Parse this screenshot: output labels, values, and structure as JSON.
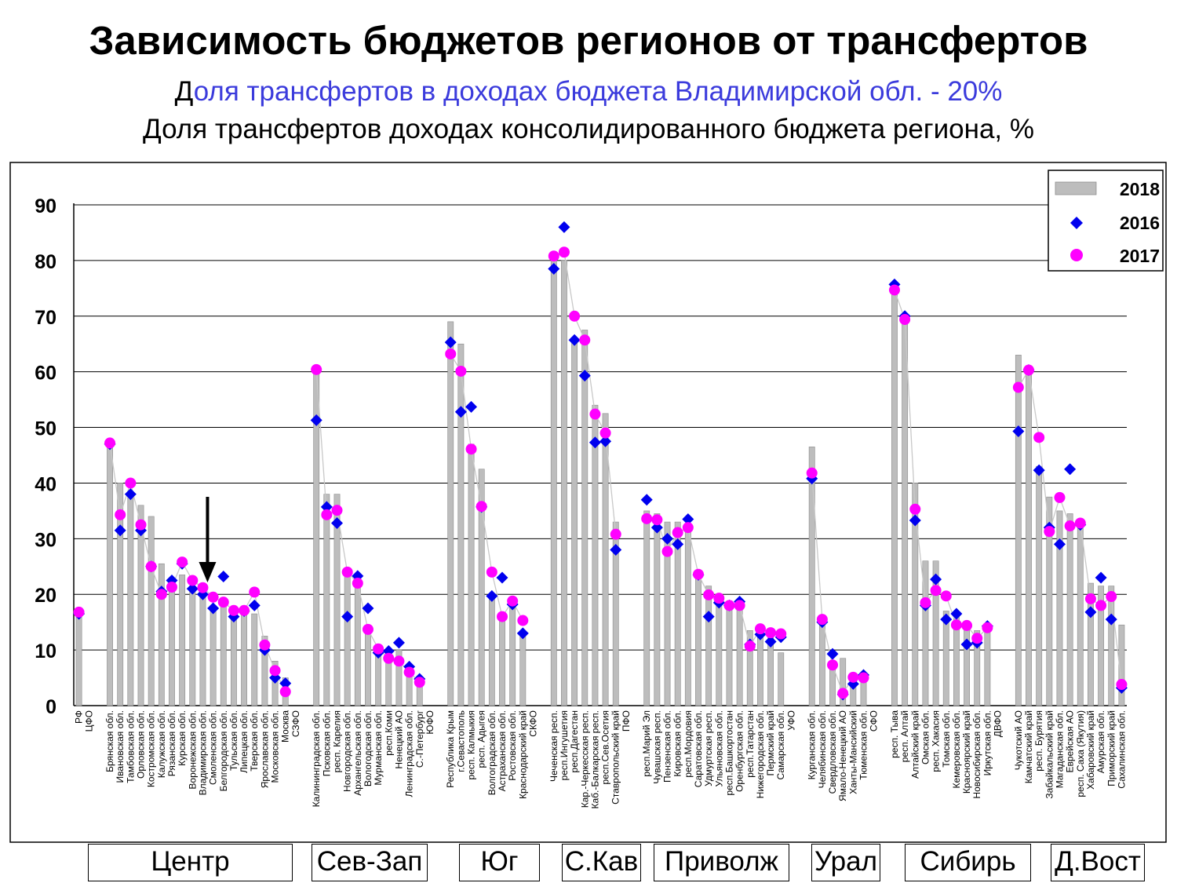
{
  "title": "Зависимость бюджетов регионов от трансфертов",
  "subtitle_first_letter": "Д",
  "subtitle_rest": "оля трансфертов в доходах бюджета Владимирской обл. - 20%",
  "subtitle2": "Доля трансфертов доходах консолидированного бюджета региона, %",
  "colors": {
    "bar": "#bdbdbd",
    "s2016": "#0000ee",
    "s2017": "#ff00ff",
    "line": "#c8c8c8"
  },
  "region_groups": [
    "Центр",
    "Сев-Зап",
    "Юг",
    "С.Кав",
    "Приволж",
    "Урал",
    "Сибирь",
    "Д.Вост"
  ],
  "chart_data": {
    "type": "bar",
    "title": "Доля трансфертов доходах консолидированного бюджета региона, %",
    "ylim": [
      0,
      90
    ],
    "yticks": [
      0,
      10,
      20,
      30,
      40,
      50,
      60,
      70,
      80,
      90
    ],
    "grid": true,
    "legend_position": "top-right",
    "series_names": [
      "2018",
      "2016",
      "2017"
    ],
    "categories": [
      "РФ",
      "ЦФО",
      "",
      "Брянская обл.",
      "Ивановская обл.",
      "Тамбовская обл.",
      "Орловская обл.",
      "Костромская обл.",
      "Калужская обл.",
      "Рязанская обл.",
      "Курская обл.",
      "Воронежская обл.",
      "Владимирская обл.",
      "Смоленская обл.",
      "Белгородская обл.",
      "Тульская обл.",
      "Липецкая обл.",
      "Тверская обл.",
      "Ярославская обл.",
      "Московская обл.",
      "Москва",
      "СЗФО",
      "",
      "Калининградская обл.",
      "Псковская обл.",
      "респ. Карелия",
      "Новгородская обл.",
      "Архангельская обл.",
      "Вологодская обл.",
      "Мурманская обл.",
      "респ.Коми",
      "Ненецкий АО",
      "Ленинградская обл.",
      "С.-Петербург",
      "ЮФО",
      "",
      "Республика Крым",
      "г.Севастополь",
      "респ. Калмыкия",
      "респ. Адыгея",
      "Волгоградская обл.",
      "Астраханская обл.",
      "Ростовская обл.",
      "Краснодарский край",
      "СКФО",
      "",
      "Чеченская респ.",
      "респ.Ингушетия",
      "респ.Дагестан",
      "Кар.-Черкесская респ.",
      "Каб.-Балкарская респ.",
      "респ.Сев.Осетия",
      "Ставропольский край",
      "ПФО",
      "",
      "респ.Марий Эл",
      "Чувашская респ.",
      "Пензенская обл.",
      "Кировская обл.",
      "респ.Мордовия",
      "Саратовская обл.",
      "Удмуртская респ.",
      "Ульяновская обл.",
      "респ.Башкортостан",
      "Оренбургская обл.",
      "респ.Татарстан",
      "Нижегородская обл.",
      "Пермский край",
      "Самарская обл.",
      "УФО",
      "",
      "Курганская обл.",
      "Челябинская обл.",
      "Свердловская обл.",
      "Ямало-Ненецкий АО",
      "Ханты-Мансийский",
      "Тюменская обл.",
      "СФО",
      "",
      "респ. Тыва",
      "респ. Алтай",
      "Алтайский край",
      "Омская обл.",
      "респ. Хакасия",
      "Томская обл.",
      "Кемеровская обл.",
      "Красноярский край",
      "Новосибирская обл.",
      "Иркутская обл.",
      "ДВФО",
      "",
      "Чукотский АО",
      "Камчатский край",
      "респ. Бурятия",
      "Забайкальский край",
      "Магаданская обл.",
      "Еврейская АО",
      "респ. Саха (Якутия)",
      "Хабаровский край",
      "Амурская обл.",
      "Приморский край",
      "Сахалинская обл."
    ],
    "series": [
      {
        "name": "2018",
        "values": [
          16,
          null,
          null,
          47,
          40,
          38,
          36,
          34,
          25.5,
          22,
          23.5,
          21.5,
          20,
          18,
          18,
          16,
          17,
          16.5,
          12.5,
          8,
          5,
          null,
          null,
          60,
          38,
          38,
          23.5,
          22,
          13,
          10,
          9,
          10,
          7,
          4.5,
          null,
          null,
          69,
          65,
          47,
          42.5,
          20,
          16,
          18,
          13,
          null,
          null,
          80,
          80,
          66,
          67.5,
          54,
          52.5,
          33,
          null,
          null,
          35,
          34.5,
          33,
          33,
          32,
          23,
          21.5,
          20,
          18,
          18.5,
          13.5,
          14,
          13,
          9.5,
          null,
          null,
          46.5,
          15,
          8,
          8.5,
          5,
          5.5,
          null,
          null,
          75,
          70,
          40,
          26,
          26,
          17,
          16,
          14,
          13.5,
          14,
          null,
          null,
          63,
          61,
          43,
          37.5,
          35,
          34.5,
          33,
          22,
          21.5,
          21.5,
          14.5
        ]
      },
      {
        "name": "2016",
        "values": [
          16.5,
          null,
          null,
          47,
          31.5,
          38,
          31.5,
          25,
          20.5,
          22.5,
          25.5,
          21,
          20,
          17.5,
          23.2,
          16,
          17,
          18,
          10,
          5,
          4,
          null,
          null,
          51.3,
          35.7,
          32.8,
          16,
          23.3,
          17.5,
          9.5,
          9.8,
          11.3,
          7,
          4.8,
          null,
          null,
          65.3,
          52.8,
          53.7,
          35.7,
          19.7,
          23,
          18.2,
          13,
          null,
          null,
          78.5,
          86,
          65.7,
          59.3,
          47.3,
          47.5,
          28,
          null,
          null,
          37,
          32,
          30,
          29,
          33.5,
          23.5,
          16,
          18.5,
          18,
          18.7,
          11,
          12.8,
          11.5,
          12.3,
          null,
          null,
          40.8,
          15,
          9.3,
          2,
          3.9,
          5.5,
          null,
          null,
          75.7,
          70,
          33.3,
          18,
          22.7,
          15.5,
          16.5,
          11,
          11.3,
          14.3,
          null,
          null,
          49.3,
          60.3,
          42.3,
          32,
          29,
          42.5,
          32.5,
          16.8,
          23,
          15.5,
          3.2
        ]
      },
      {
        "name": "2017",
        "values": [
          16.8,
          null,
          null,
          47.2,
          34.3,
          40,
          32.5,
          25,
          20,
          21.3,
          25.8,
          22.5,
          21.2,
          19.5,
          18.6,
          17.1,
          17.1,
          20.4,
          10.9,
          6.3,
          2.5,
          null,
          null,
          60.4,
          34.3,
          35.1,
          24,
          22,
          13.7,
          10.2,
          8.5,
          8,
          6,
          4.2,
          null,
          null,
          63.2,
          60.1,
          46.1,
          35.8,
          24,
          16,
          18.8,
          15.3,
          null,
          null,
          80.8,
          81.5,
          70,
          65.7,
          52.4,
          49,
          30.8,
          null,
          null,
          33.6,
          33.4,
          27.7,
          31.1,
          32,
          23.6,
          19.9,
          19.3,
          18,
          18,
          10.7,
          13.8,
          13.1,
          12.9,
          null,
          null,
          41.8,
          15.5,
          7.3,
          2.2,
          5.1,
          5,
          null,
          null,
          74.7,
          69.4,
          35.3,
          18.5,
          20.7,
          19.7,
          14.5,
          14.4,
          12.1,
          14,
          null,
          null,
          57.2,
          60.3,
          48.2,
          31.3,
          37.4,
          32.3,
          32.8,
          19.2,
          18,
          19.6,
          3.8
        ]
      }
    ]
  }
}
